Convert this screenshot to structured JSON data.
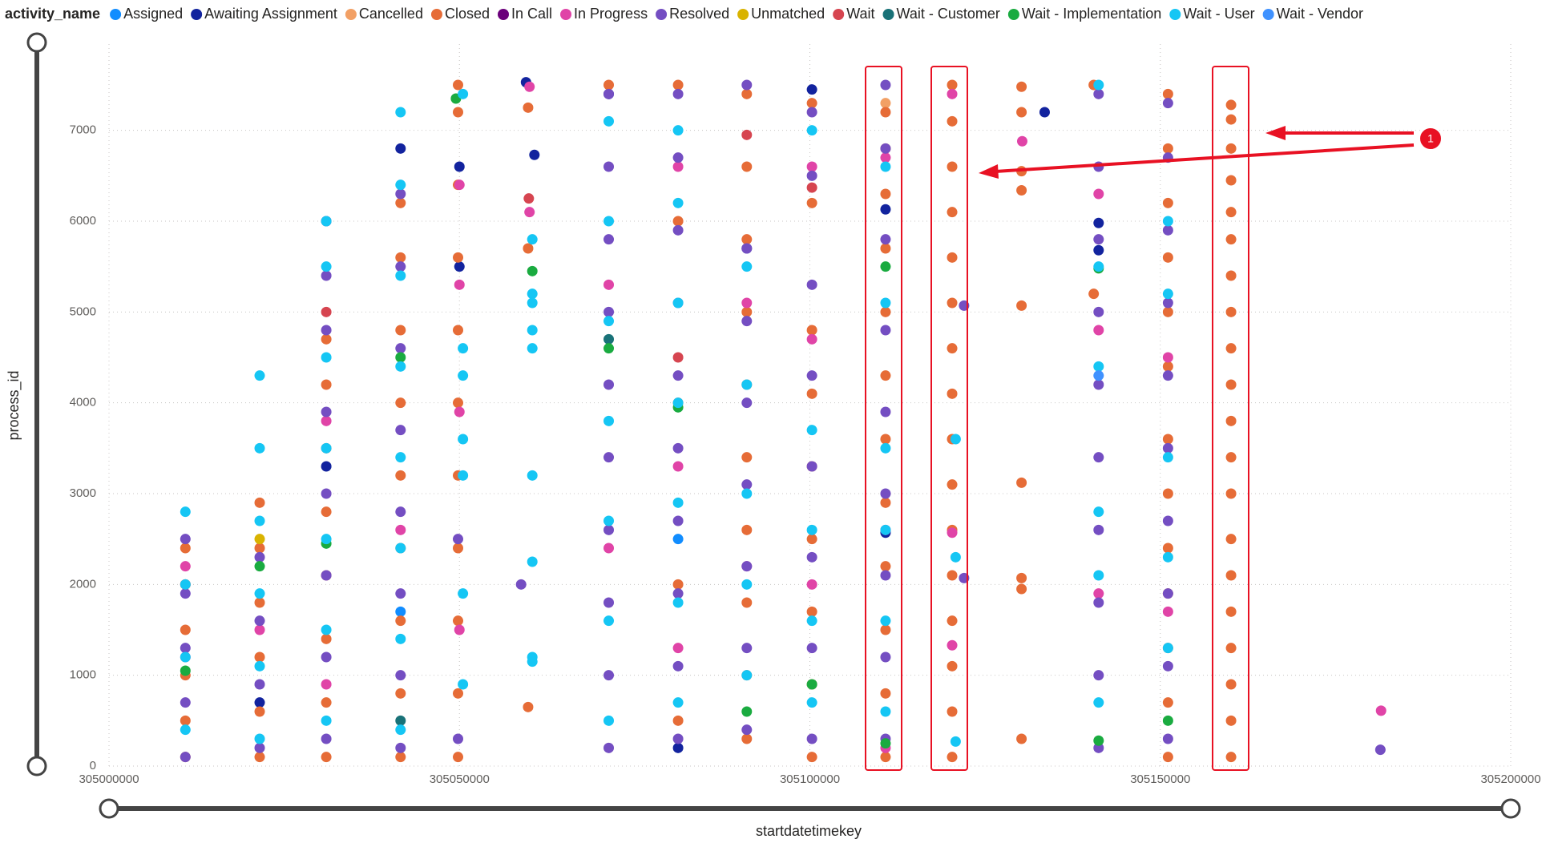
{
  "chart_data": {
    "type": "scatter",
    "legend_title": "activity_name",
    "x_label": "startdatetimekey",
    "y_label": "process_id",
    "annotation": "1",
    "xlim": [
      305000000,
      305200000
    ],
    "xticks": [
      305000000,
      305050000,
      305100000,
      305150000,
      305200000
    ],
    "ylim": [
      0,
      7950
    ],
    "yticks": [
      0,
      1000,
      2000,
      3000,
      4000,
      5000,
      6000,
      7000
    ],
    "grid": true,
    "series": [
      {
        "name": "Assigned",
        "color": "#118DFF",
        "x": [
          305041600,
          305081200
        ],
        "values": [
          1700,
          2500
        ]
      },
      {
        "name": "Awaiting Assignment",
        "color": "#12239E",
        "x": [
          305021500,
          305031000,
          305041600,
          305050000,
          305050000,
          305060700,
          305059500,
          305071300,
          305091000,
          305100300,
          305110800,
          305110800,
          305133500,
          305141200,
          305141200,
          305081200
        ],
        "values": [
          700,
          3300,
          6800,
          5500,
          6600,
          6730,
          7530,
          7400,
          5700,
          7450,
          6130,
          2570,
          7200,
          5680,
          5980,
          200
        ]
      },
      {
        "name": "Cancelled",
        "color": "#F2A065",
        "x": [
          305110800
        ],
        "values": [
          7300
        ]
      },
      {
        "name": "Closed",
        "color": "#E66C37",
        "x": [
          305010900,
          305010900,
          305010900,
          305010900,
          305010900,
          305010900,
          305021500,
          305021500,
          305021500,
          305021500,
          305021500,
          305021500,
          305031000,
          305031000,
          305031000,
          305031000,
          305031000,
          305031000,
          305031000,
          305031000,
          305041600,
          305041600,
          305041600,
          305041600,
          305041600,
          305041600,
          305041600,
          305041600,
          305041600,
          305049800,
          305049800,
          305049800,
          305049800,
          305049800,
          305049800,
          305049800,
          305049800,
          305049800,
          305049800,
          305049800,
          305059800,
          305059800,
          305059800,
          305071300,
          305081200,
          305081200,
          305081200,
          305081200,
          305081200,
          305091000,
          305091000,
          305091000,
          305091000,
          305091000,
          305091000,
          305091000,
          305091000,
          305091000,
          305091000,
          305100300,
          305100300,
          305100300,
          305100300,
          305100300,
          305100300,
          305100300,
          305100300,
          305100300,
          305110800,
          305110800,
          305110800,
          305110800,
          305110800,
          305110800,
          305110800,
          305110800,
          305110800,
          305110800,
          305110800,
          305110800,
          305120300,
          305120300,
          305120300,
          305120300,
          305120300,
          305120300,
          305120300,
          305120300,
          305120300,
          305120300,
          305120300,
          305120300,
          305120300,
          305120300,
          305120300,
          305120300,
          305130200,
          305130200,
          305130200,
          305130200,
          305130200,
          305130200,
          305130200,
          305130200,
          305130200,
          305140500,
          305140500,
          305151100,
          305151100,
          305151100,
          305151100,
          305151100,
          305151100,
          305151100,
          305151100,
          305151100,
          305151100,
          305151100,
          305151100,
          305151100,
          305160100,
          305160100,
          305160100,
          305160100,
          305160100,
          305160100,
          305160100,
          305160100,
          305160100,
          305160100,
          305160100,
          305160100,
          305160100,
          305160100,
          305160100,
          305160100,
          305160100,
          305160100,
          305160100,
          305160100
        ],
        "values": [
          100,
          500,
          1000,
          1500,
          2000,
          2400,
          100,
          600,
          1200,
          1800,
          2400,
          2900,
          100,
          700,
          1400,
          2100,
          2800,
          3500,
          4200,
          4700,
          100,
          800,
          1600,
          2400,
          3200,
          4000,
          4800,
          5600,
          6200,
          100,
          800,
          1600,
          2400,
          3200,
          4000,
          4800,
          5600,
          6400,
          7200,
          7500,
          650,
          5700,
          7250,
          7500,
          500,
          2000,
          4000,
          6000,
          7500,
          300,
          1000,
          1800,
          2600,
          3400,
          4200,
          5000,
          5800,
          6600,
          7400,
          100,
          900,
          1700,
          2500,
          3300,
          4100,
          4800,
          6200,
          7300,
          100,
          800,
          1500,
          2200,
          2900,
          3600,
          4300,
          5000,
          5700,
          6300,
          6800,
          7200,
          100,
          600,
          1100,
          1600,
          2100,
          2600,
          3100,
          3600,
          4100,
          4600,
          5100,
          5600,
          6100,
          6600,
          7100,
          7500,
          300,
          1950,
          2070,
          3120,
          5070,
          6340,
          6550,
          7200,
          7480,
          7500,
          5200,
          100,
          700,
          1300,
          1900,
          2400,
          3000,
          3600,
          4400,
          5000,
          5600,
          6200,
          6800,
          7400,
          100,
          500,
          900,
          1300,
          1700,
          2100,
          2500,
          3000,
          3400,
          3800,
          4200,
          4600,
          5000,
          5400,
          5800,
          6100,
          6450,
          6800,
          7120,
          7280
        ]
      },
      {
        "name": "In Call",
        "color": "#6B007B",
        "x": [
          305031000
        ],
        "values": [
          6000
        ]
      },
      {
        "name": "In Progress",
        "color": "#E044A7",
        "x": [
          305010900,
          305010900,
          305021500,
          305031000,
          305031000,
          305041600,
          305050000,
          305050000,
          305050000,
          305050000,
          305060000,
          305060000,
          305071300,
          305071300,
          305081200,
          305081200,
          305081200,
          305091000,
          305091000,
          305100300,
          305100300,
          305100300,
          305110800,
          305110800,
          305110800,
          305120300,
          305120300,
          305120300,
          305130300,
          305141200,
          305141200,
          305141200,
          305151100,
          305151100,
          305181500
        ],
        "values": [
          1200,
          2200,
          1500,
          900,
          3800,
          2600,
          1500,
          3900,
          5300,
          6400,
          6100,
          7480,
          2400,
          5300,
          1300,
          3300,
          6600,
          2200,
          5100,
          2000,
          4700,
          6600,
          200,
          2600,
          6700,
          1330,
          2570,
          7400,
          6880,
          1900,
          4800,
          6300,
          1700,
          4500,
          610
        ]
      },
      {
        "name": "Resolved",
        "color": "#744EC2",
        "x": [
          305010900,
          305010900,
          305010900,
          305010900,
          305010900,
          305021500,
          305021500,
          305021500,
          305021500,
          305031000,
          305031000,
          305031000,
          305031000,
          305031000,
          305031000,
          305031000,
          305041600,
          305041600,
          305041600,
          305041600,
          305041600,
          305041600,
          305041600,
          305041600,
          305049800,
          305049800,
          305058800,
          305071300,
          305071300,
          305071300,
          305071300,
          305071300,
          305071300,
          305071300,
          305071300,
          305071300,
          305071300,
          305081200,
          305081200,
          305081200,
          305081200,
          305081200,
          305081200,
          305081200,
          305081200,
          305081200,
          305081200,
          305091000,
          305091000,
          305091000,
          305091000,
          305091000,
          305091000,
          305091000,
          305091000,
          305100300,
          305100300,
          305100300,
          305100300,
          305100300,
          305100300,
          305100300,
          305100300,
          305110800,
          305110800,
          305110800,
          305110800,
          305110800,
          305110800,
          305110800,
          305110800,
          305110800,
          305122000,
          305122000,
          305141200,
          305141200,
          305141200,
          305141200,
          305141200,
          305141200,
          305141200,
          305141200,
          305141200,
          305141200,
          305151100,
          305151100,
          305151100,
          305151100,
          305151100,
          305151100,
          305151100,
          305151100,
          305151100,
          305151100,
          305181400
        ],
        "values": [
          100,
          700,
          1300,
          1900,
          2500,
          200,
          900,
          1600,
          2300,
          300,
          1200,
          2100,
          3000,
          3900,
          4800,
          5400,
          200,
          1000,
          1900,
          2800,
          3700,
          4600,
          5500,
          6300,
          300,
          2500,
          2000,
          200,
          1000,
          1800,
          2600,
          3400,
          4200,
          5000,
          5800,
          6600,
          7400,
          300,
          1100,
          1900,
          2700,
          3500,
          4300,
          5100,
          5900,
          6700,
          7400,
          400,
          1300,
          2200,
          3100,
          4000,
          4900,
          5700,
          7500,
          300,
          1300,
          2300,
          3300,
          4300,
          5300,
          6500,
          7200,
          300,
          1200,
          2100,
          3000,
          3900,
          4800,
          5800,
          6800,
          7500,
          5070,
          2070,
          200,
          1000,
          1800,
          2600,
          3400,
          4200,
          5000,
          5800,
          6600,
          7400,
          300,
          1100,
          1900,
          2700,
          3500,
          4300,
          5100,
          5900,
          6700,
          7300,
          180
        ]
      },
      {
        "name": "Unmatched",
        "color": "#D9B300",
        "x": [
          305021500
        ],
        "values": [
          2500
        ]
      },
      {
        "name": "Wait",
        "color": "#D64550",
        "x": [
          305010900,
          305031000,
          305059900,
          305081200,
          305091000,
          305100300
        ],
        "values": [
          2000,
          5000,
          6250,
          4500,
          6950,
          6370
        ]
      },
      {
        "name": "Wait - Customer",
        "color": "#197278",
        "x": [
          305041600,
          305071300
        ],
        "values": [
          500,
          4700
        ]
      },
      {
        "name": "Wait - Implementation",
        "color": "#1AAB40",
        "x": [
          305010900,
          305021500,
          305031000,
          305041600,
          305049500,
          305060400,
          305071300,
          305081200,
          305091000,
          305100300,
          305110800,
          305110800,
          305141200,
          305141200,
          305151100
        ],
        "values": [
          1050,
          2200,
          2450,
          4500,
          7350,
          5450,
          4600,
          3950,
          600,
          900,
          250,
          5500,
          280,
          5480,
          500
        ]
      },
      {
        "name": "Wait - User",
        "color": "#15C6F4",
        "x": [
          305010900,
          305010900,
          305010900,
          305010900,
          305021500,
          305021500,
          305021500,
          305021500,
          305021500,
          305021500,
          305031000,
          305031000,
          305031000,
          305031000,
          305031000,
          305031000,
          305031000,
          305041600,
          305041600,
          305041600,
          305041600,
          305041600,
          305041600,
          305041600,
          305041600,
          305050500,
          305050500,
          305050500,
          305050500,
          305050500,
          305050500,
          305050500,
          305060400,
          305060400,
          305060400,
          305060400,
          305060400,
          305060400,
          305060400,
          305060400,
          305060400,
          305071300,
          305071300,
          305071300,
          305071300,
          305071300,
          305071300,
          305071300,
          305081200,
          305081200,
          305081200,
          305081200,
          305081200,
          305081200,
          305081200,
          305091000,
          305091000,
          305091000,
          305091000,
          305091000,
          305100300,
          305100300,
          305100300,
          305100300,
          305100300,
          305110800,
          305110800,
          305110800,
          305110800,
          305110800,
          305110800,
          305120800,
          305120800,
          305120800,
          305141200,
          305141200,
          305141200,
          305141200,
          305141200,
          305141200,
          305151100,
          305151100,
          305151100,
          305151100,
          305151100
        ],
        "values": [
          400,
          1200,
          2000,
          2800,
          300,
          1100,
          1900,
          2700,
          3500,
          4300,
          500,
          1500,
          2500,
          3500,
          4500,
          5500,
          6000,
          400,
          1400,
          2400,
          3400,
          4400,
          5400,
          6400,
          7200,
          900,
          1900,
          3200,
          3600,
          4300,
          4600,
          7400,
          1150,
          1200,
          2250,
          3200,
          4600,
          4800,
          5100,
          5200,
          5800,
          500,
          1600,
          2700,
          3800,
          4900,
          6000,
          7100,
          700,
          1800,
          2900,
          4000,
          5100,
          6200,
          7000,
          1000,
          2000,
          3000,
          4200,
          5500,
          700,
          1600,
          2600,
          3700,
          7000,
          600,
          1600,
          2600,
          3500,
          5100,
          6600,
          270,
          2300,
          3600,
          700,
          2100,
          2800,
          4400,
          5500,
          7500,
          1300,
          2300,
          3400,
          5200,
          6000
        ]
      },
      {
        "name": "Wait - Vendor",
        "color": "#4092FF",
        "x": [
          305141200
        ],
        "values": [
          4300
        ]
      }
    ]
  }
}
